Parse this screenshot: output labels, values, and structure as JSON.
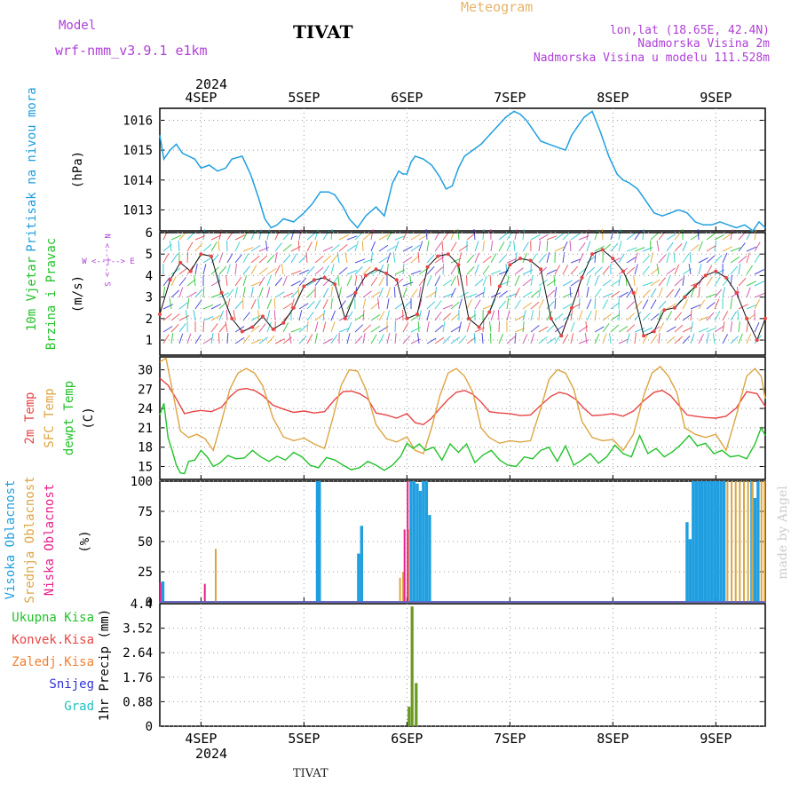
{
  "header": {
    "model_label": "Model",
    "model_name": "wrf-nmm_v3.9.1 e1km",
    "station": "TIVAT",
    "product": "Meteogram",
    "location": "lon,lat (18.65E, 42.4N)",
    "elevation": "Nadmorska Visina 2m",
    "model_elevation": "Nadmorska Visina u modelu 111.528m",
    "footer_station": "TIVAT",
    "watermark": "made by Angel"
  },
  "colors": {
    "pressure": "#1f9fe0",
    "temp2m": "#e84545",
    "sfc_temp": "#dca542",
    "dewpt": "#22c22a",
    "high_cloud": "#1f9fe0",
    "mid_cloud": "#dca542",
    "low_cloud": "#e8208a",
    "total_precip": "#22c22a",
    "conv_precip": "#e84545",
    "frozen_precip": "#f08030",
    "snow": "#3030d8",
    "hail": "#20c0c0",
    "title_orange": "#e8b468",
    "purple": "#b040d8"
  },
  "chart_data": [
    {
      "type": "line",
      "name": "pressure",
      "title_lines": [
        "Pritisak na nivou mora"
      ],
      "ylabel": "(hPa)",
      "yticks": [
        1013,
        1014,
        1015,
        1016
      ],
      "ylim": [
        1012.3,
        1016.4
      ],
      "top_date_year": "2024",
      "xticks": [
        {
          "day": 4,
          "label": "4SEP"
        },
        {
          "day": 5,
          "label": "5SEP"
        },
        {
          "day": 6,
          "label": "6SEP"
        },
        {
          "day": 7,
          "label": "7SEP"
        },
        {
          "day": 8,
          "label": "8SEP"
        },
        {
          "day": 9,
          "label": "9SEP"
        }
      ],
      "xlim_days": [
        3.6,
        9.48
      ],
      "series": [
        {
          "x": [
            3.6,
            3.64,
            3.7,
            3.76,
            3.82,
            3.88,
            3.94,
            4.0,
            4.08,
            4.16,
            4.24,
            4.3,
            4.4,
            4.48,
            4.56,
            4.62,
            4.68,
            4.74,
            4.8,
            4.9,
            5.0,
            5.08,
            5.16,
            5.24,
            5.3,
            5.38,
            5.44,
            5.52,
            5.6,
            5.7,
            5.78,
            5.86,
            5.92,
            5.96,
            6.0,
            6.04,
            6.08,
            6.16,
            6.24,
            6.32,
            6.38,
            6.44,
            6.5,
            6.56,
            6.64,
            6.72,
            6.8,
            6.88,
            6.96,
            7.04,
            7.1,
            7.16,
            7.22,
            7.3,
            7.38,
            7.46,
            7.54,
            7.6,
            7.66,
            7.72,
            7.8,
            7.88,
            7.96,
            8.04,
            8.1,
            8.16,
            8.24,
            8.32,
            8.4,
            8.48,
            8.56,
            8.64,
            8.72,
            8.8,
            8.88,
            8.96,
            9.04,
            9.12,
            9.2,
            9.28,
            9.36,
            9.42,
            9.48
          ],
          "values": [
            1015.5,
            1014.7,
            1015.0,
            1015.2,
            1014.9,
            1014.8,
            1014.7,
            1014.4,
            1014.5,
            1014.3,
            1014.4,
            1014.7,
            1014.8,
            1014.2,
            1013.4,
            1012.7,
            1012.4,
            1012.5,
            1012.7,
            1012.6,
            1012.9,
            1013.2,
            1013.6,
            1013.6,
            1013.5,
            1013.1,
            1012.7,
            1012.4,
            1012.8,
            1013.1,
            1012.8,
            1013.9,
            1014.3,
            1014.2,
            1014.2,
            1014.6,
            1014.8,
            1014.7,
            1014.5,
            1014.1,
            1013.7,
            1013.8,
            1014.4,
            1014.8,
            1015.0,
            1015.2,
            1015.5,
            1015.8,
            1016.1,
            1016.3,
            1016.2,
            1016.0,
            1015.7,
            1015.3,
            1015.2,
            1015.1,
            1015.0,
            1015.5,
            1015.8,
            1016.1,
            1016.3,
            1015.6,
            1014.8,
            1014.2,
            1014.0,
            1013.9,
            1013.7,
            1013.3,
            1012.9,
            1012.8,
            1012.9,
            1013.0,
            1012.9,
            1012.6,
            1012.5,
            1012.5,
            1012.6,
            1012.5,
            1012.4,
            1012.5,
            1012.3,
            1012.6,
            1012.4
          ]
        }
      ]
    },
    {
      "type": "scatter",
      "name": "wind",
      "title_lines": [
        "10m Vjetar",
        "Brzina i Pravac"
      ],
      "ylabel": "(m/s)",
      "yticks": [
        1,
        2,
        3,
        4,
        5,
        6
      ],
      "ylim": [
        0.3,
        6.0
      ],
      "compass": {
        "north": "N",
        "south": "S",
        "east": "E",
        "west": "W"
      },
      "series": [
        {
          "x": [
            3.6,
            3.7,
            3.8,
            3.9,
            4.0,
            4.1,
            4.2,
            4.3,
            4.4,
            4.5,
            4.6,
            4.7,
            4.8,
            4.9,
            5.0,
            5.1,
            5.2,
            5.3,
            5.4,
            5.5,
            5.6,
            5.7,
            5.8,
            5.9,
            6.0,
            6.1,
            6.2,
            6.3,
            6.4,
            6.5,
            6.6,
            6.7,
            6.8,
            6.9,
            7.0,
            7.1,
            7.2,
            7.3,
            7.4,
            7.5,
            7.6,
            7.7,
            7.8,
            7.9,
            8.0,
            8.1,
            8.2,
            8.3,
            8.4,
            8.5,
            8.6,
            8.7,
            8.8,
            8.9,
            9.0,
            9.1,
            9.2,
            9.3,
            9.4,
            9.48
          ],
          "values": [
            2.2,
            3.8,
            4.6,
            4.2,
            5.0,
            4.9,
            3.2,
            2.0,
            1.4,
            1.6,
            2.1,
            1.5,
            1.8,
            2.5,
            3.5,
            3.8,
            3.9,
            3.6,
            2.0,
            3.2,
            4.0,
            4.3,
            4.1,
            3.8,
            2.0,
            2.2,
            4.4,
            4.9,
            5.0,
            4.5,
            2.0,
            1.6,
            2.3,
            3.5,
            4.5,
            4.8,
            4.7,
            4.3,
            2.0,
            1.2,
            2.5,
            3.9,
            5.0,
            5.2,
            4.8,
            4.2,
            3.2,
            1.2,
            1.4,
            2.4,
            2.5,
            3.0,
            3.5,
            4.0,
            4.2,
            3.9,
            3.2,
            2.0,
            1.0,
            2.0
          ]
        }
      ]
    },
    {
      "type": "line",
      "name": "temperature",
      "title_lines": [
        "2m Temp",
        "SFC Temp",
        "dewpt Temp"
      ],
      "ylabel": "(C)",
      "yticks": [
        15,
        18,
        21,
        24,
        27,
        30
      ],
      "ylim": [
        13.0,
        32.0
      ],
      "series": [
        {
          "name": "2m Temp",
          "x": [
            3.6,
            3.68,
            3.76,
            3.84,
            3.92,
            4.0,
            4.1,
            4.2,
            4.28,
            4.36,
            4.44,
            4.52,
            4.6,
            4.7,
            4.8,
            4.9,
            5.0,
            5.1,
            5.2,
            5.3,
            5.38,
            5.46,
            5.54,
            5.62,
            5.7,
            5.8,
            5.9,
            6.0,
            6.08,
            6.16,
            6.24,
            6.32,
            6.4,
            6.48,
            6.56,
            6.64,
            6.72,
            6.8,
            6.9,
            7.0,
            7.1,
            7.2,
            7.3,
            7.4,
            7.48,
            7.56,
            7.64,
            7.72,
            7.8,
            7.9,
            8.0,
            8.1,
            8.2,
            8.3,
            8.4,
            8.48,
            8.56,
            8.64,
            8.72,
            8.8,
            8.9,
            9.0,
            9.1,
            9.2,
            9.3,
            9.4,
            9.48
          ],
          "values": [
            28.7,
            27.6,
            25.5,
            23.2,
            23.5,
            23.7,
            23.5,
            24.2,
            25.8,
            26.9,
            27.1,
            26.8,
            26.0,
            24.5,
            23.9,
            23.4,
            23.6,
            23.3,
            23.5,
            25.4,
            26.6,
            26.7,
            26.3,
            25.5,
            23.3,
            23.0,
            22.5,
            23.2,
            21.8,
            21.5,
            22.5,
            24.0,
            25.4,
            26.5,
            26.8,
            26.2,
            25.0,
            23.5,
            23.3,
            23.2,
            22.9,
            23.0,
            24.5,
            25.9,
            26.5,
            26.2,
            25.4,
            24.0,
            22.9,
            23.0,
            23.2,
            22.8,
            23.6,
            25.2,
            26.5,
            26.8,
            26.0,
            24.5,
            23.0,
            22.8,
            22.6,
            22.5,
            22.8,
            24.1,
            26.6,
            26.3,
            24.3
          ]
        },
        {
          "name": "SFC Temp",
          "x": [
            3.6,
            3.66,
            3.72,
            3.8,
            3.88,
            3.96,
            4.04,
            4.12,
            4.2,
            4.28,
            4.36,
            4.44,
            4.52,
            4.6,
            4.7,
            4.8,
            4.9,
            5.0,
            5.1,
            5.2,
            5.28,
            5.36,
            5.44,
            5.52,
            5.6,
            5.7,
            5.8,
            5.9,
            6.0,
            6.08,
            6.16,
            6.24,
            6.32,
            6.4,
            6.48,
            6.56,
            6.64,
            6.72,
            6.8,
            6.9,
            7.0,
            7.1,
            7.2,
            7.3,
            7.38,
            7.46,
            7.54,
            7.62,
            7.7,
            7.8,
            7.9,
            8.0,
            8.1,
            8.2,
            8.3,
            8.38,
            8.46,
            8.54,
            8.62,
            8.7,
            8.8,
            8.9,
            9.0,
            9.1,
            9.2,
            9.3,
            9.38,
            9.44,
            9.48
          ],
          "values": [
            31.2,
            31.8,
            27.0,
            20.5,
            19.5,
            20.0,
            19.3,
            17.5,
            22.0,
            27.0,
            29.5,
            30.2,
            29.5,
            27.5,
            22.5,
            19.6,
            19.0,
            19.4,
            18.5,
            17.8,
            22.5,
            27.5,
            30.0,
            29.8,
            27.0,
            21.5,
            19.3,
            18.8,
            19.6,
            17.5,
            17.0,
            21.0,
            26.0,
            29.5,
            30.2,
            29.0,
            26.5,
            21.0,
            19.5,
            18.6,
            19.0,
            18.8,
            19.0,
            24.0,
            28.5,
            30.0,
            29.5,
            27.0,
            22.0,
            19.5,
            19.0,
            19.2,
            17.5,
            20.0,
            26.0,
            29.5,
            30.5,
            29.0,
            26.5,
            21.0,
            20.0,
            19.5,
            20.0,
            17.5,
            23.0,
            29.0,
            30.2,
            29.0,
            25.5
          ]
        },
        {
          "name": "dewpt Temp",
          "x": [
            3.6,
            3.64,
            3.68,
            3.72,
            3.76,
            3.8,
            3.84,
            3.88,
            3.94,
            4.0,
            4.06,
            4.12,
            4.18,
            4.26,
            4.34,
            4.42,
            4.5,
            4.58,
            4.66,
            4.74,
            4.82,
            4.9,
            4.98,
            5.06,
            5.14,
            5.22,
            5.3,
            5.38,
            5.46,
            5.54,
            5.62,
            5.7,
            5.78,
            5.86,
            5.94,
            6.0,
            6.06,
            6.12,
            6.18,
            6.26,
            6.34,
            6.42,
            6.5,
            6.58,
            6.66,
            6.74,
            6.82,
            6.9,
            6.98,
            7.06,
            7.14,
            7.22,
            7.3,
            7.38,
            7.46,
            7.54,
            7.62,
            7.7,
            7.78,
            7.86,
            7.94,
            8.02,
            8.1,
            8.18,
            8.26,
            8.34,
            8.42,
            8.5,
            8.58,
            8.66,
            8.74,
            8.82,
            8.9,
            8.98,
            9.06,
            9.14,
            9.22,
            9.3,
            9.38,
            9.44,
            9.48
          ],
          "values": [
            23.0,
            24.8,
            19.5,
            17.5,
            15.2,
            14.0,
            13.9,
            15.8,
            16.0,
            17.5,
            16.5,
            15.0,
            15.5,
            16.7,
            16.2,
            16.3,
            17.5,
            16.5,
            15.8,
            16.6,
            16.0,
            17.2,
            16.5,
            15.2,
            14.8,
            16.4,
            16.0,
            15.2,
            14.5,
            14.8,
            15.8,
            15.2,
            14.4,
            15.2,
            16.6,
            18.6,
            17.8,
            18.5,
            17.5,
            18.0,
            16.0,
            18.5,
            17.2,
            18.5,
            15.6,
            16.8,
            17.5,
            16.0,
            15.2,
            15.0,
            16.5,
            16.2,
            17.5,
            18.0,
            15.8,
            18.2,
            15.2,
            16.0,
            17.0,
            15.5,
            16.5,
            18.3,
            17.0,
            16.5,
            19.8,
            17.0,
            17.8,
            16.5,
            17.3,
            18.4,
            19.8,
            18.2,
            18.6,
            17.0,
            17.5,
            16.5,
            16.7,
            16.2,
            18.5,
            21.0,
            19.8
          ]
        }
      ]
    },
    {
      "type": "bar",
      "name": "cloud",
      "title_lines": [
        "Visoka Oblacnost",
        "Srednja Oblacnost",
        "Niska Oblacnost"
      ],
      "ylabel": "(%)",
      "yticks": [
        0,
        25,
        50,
        75,
        100
      ],
      "ylim": [
        0,
        100
      ],
      "series": [
        {
          "name": "Visoka Oblacnost",
          "x": [
            3.63,
            5.13,
            5.15,
            5.53,
            5.56,
            6.04,
            6.07,
            6.1,
            6.13,
            6.16,
            6.19,
            6.22,
            8.72,
            8.75,
            8.78,
            8.81,
            8.84,
            8.87,
            8.9,
            8.93,
            8.96,
            8.99,
            9.02,
            9.05,
            9.08,
            9.35,
            9.38,
            9.41
          ],
          "values": [
            17,
            100,
            100,
            40,
            63,
            100,
            100,
            98,
            92,
            100,
            100,
            72,
            66,
            52,
            100,
            100,
            100,
            100,
            100,
            100,
            100,
            100,
            100,
            100,
            100,
            100,
            86,
            100
          ]
        },
        {
          "name": "Srednja Oblacnost",
          "x": [
            4.13,
            5.92,
            5.95,
            6.0,
            9.1,
            9.14,
            9.18,
            9.22,
            9.26,
            9.3,
            9.34,
            9.43,
            9.46
          ],
          "values": [
            44,
            20,
            25,
            60,
            100,
            100,
            100,
            100,
            100,
            100,
            100,
            100,
            100
          ]
        },
        {
          "name": "Niska Oblacnost",
          "x": [
            3.62,
            4.05,
            5.99,
            6.02
          ],
          "values": [
            16,
            15,
            60,
            100
          ]
        }
      ]
    },
    {
      "type": "bar",
      "name": "precip",
      "title_lines": [
        "Ukupna Kisa",
        "Konvek.Kisa",
        "Zaledj.Kisa",
        "Snijeg",
        "Grad"
      ],
      "ylabel": "1hr Precip (mm)",
      "yticks": [
        0,
        0.88,
        1.76,
        2.64,
        3.52,
        4.4
      ],
      "ylim": [
        0,
        4.4
      ],
      "bottom_date_year": "2024",
      "series": [
        {
          "name": "Ukupna Kisa",
          "x": [
            6.02,
            6.05,
            6.09
          ],
          "values": [
            0.7,
            4.3,
            1.55
          ]
        }
      ]
    }
  ]
}
